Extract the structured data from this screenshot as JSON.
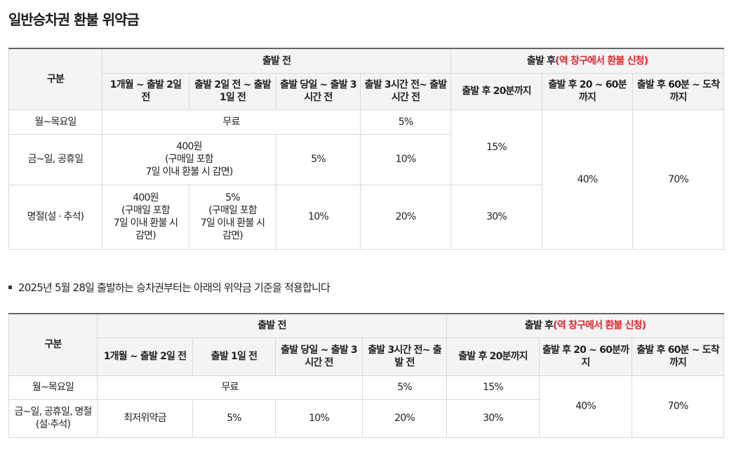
{
  "title": "일반승차권 환불 위약금",
  "headers": {
    "category": "구분",
    "before": "출발 전",
    "after_prefix": "출발 후",
    "after_note": "(역 창구에서 환불 신청)"
  },
  "table1": {
    "cols": [
      "1개월 ~ 출발 2일 전",
      "출발 2일 전 ~ 출발 1일 전",
      "출발 당일 ~ 출발 3시간 전",
      "출발 3시간 전~ 출발시간 전",
      "출발 후 20분까지",
      "출발 후 20 ~ 60분까지",
      "출발 후 60분 ~ 도착까지"
    ],
    "rows": {
      "weekday": {
        "label": "월~목요일",
        "free": "무료",
        "c4": "5%",
        "after20": "15%",
        "after60": "40%",
        "arrival": "70%"
      },
      "weekend": {
        "label": "금~일, 공휴일",
        "c12": "400원\n(구매일 포함\n7일 이내 환불 시 감면)",
        "c3": "5%",
        "c4": "10%"
      },
      "holiday": {
        "label": "명절(설 · 추석)",
        "c1": "400원\n(구매일 포함\n7일 이내 환불 시\n감면)",
        "c2": "5%\n(구매일 포함\n7일 이내 환불 시\n감면)",
        "c3": "10%",
        "c4": "20%",
        "after20": "30%"
      }
    }
  },
  "notice": "2025년 5월 28일 출발하는 승차권부터는 아래의 위약금 기준을 적용합니다",
  "table2": {
    "cols": [
      "1개월 ~ 출발 2일 전",
      "출발 1일 전",
      "출발 당일 ~ 출발 3시간 전",
      "출발 3시간 전~ 출발 전",
      "출발 후 20분까지",
      "출발 후 20 ~ 60분까지",
      "출발 후 60분 ~ 도착까지"
    ],
    "rows": {
      "weekday": {
        "label": "월~목요일",
        "free": "무료",
        "c4": "5%",
        "after20": "15%",
        "after60": "40%",
        "arrival": "70%"
      },
      "weekend": {
        "label": "금~일, 공휴일, 명절 (설·추석)",
        "c1": "최저위약금",
        "c2": "5%",
        "c3": "10%",
        "c4": "20%",
        "after20": "30%"
      }
    }
  }
}
